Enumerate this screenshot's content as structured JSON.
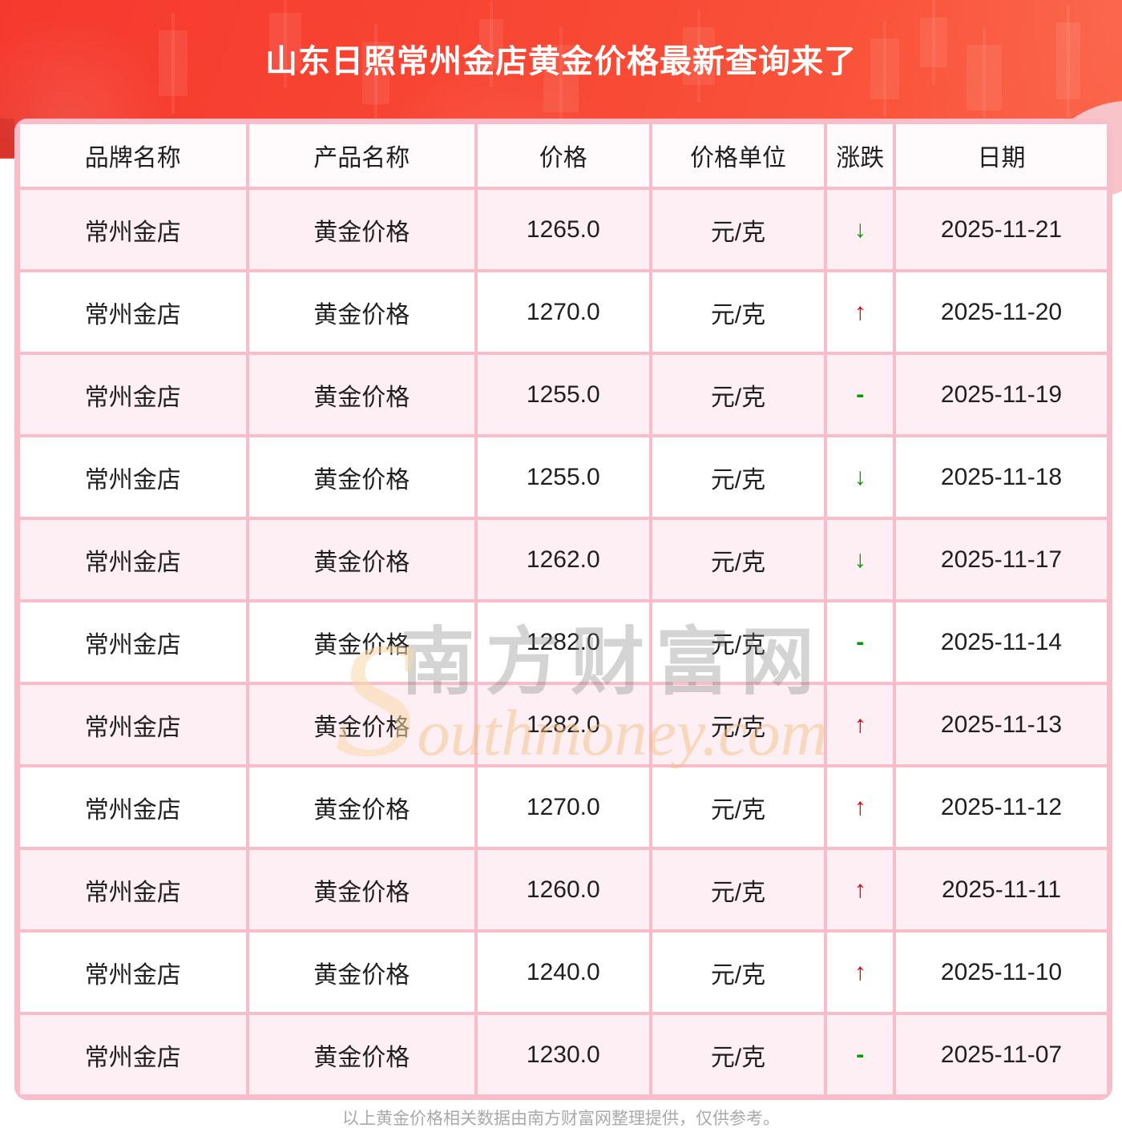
{
  "page": {
    "title": "山东日照常州金店黄金价格最新查询来了",
    "footer_note": "以上黄金价格相关数据由南方财富网整理提供，仅供参考。"
  },
  "watermark": {
    "site_cn": "南方财富网",
    "site_en": "Southmoney.com"
  },
  "colors": {
    "banner_red": "#f6392e",
    "up_arrow_red": "#e60000",
    "down_arrow_green": "#019a01",
    "border_pink": "#f8bdc9",
    "row_pink": "#fdeff3"
  },
  "table": {
    "headers": [
      "品牌名称",
      "产品名称",
      "价格",
      "价格单位",
      "涨跌",
      "日期"
    ],
    "rows": [
      {
        "brand": "常州金店",
        "product": "黄金价格",
        "price": "1265.0",
        "unit": "元/克",
        "change": "↓",
        "dir": "down",
        "date": "2025-11-21"
      },
      {
        "brand": "常州金店",
        "product": "黄金价格",
        "price": "1270.0",
        "unit": "元/克",
        "change": "↑",
        "dir": "up",
        "date": "2025-11-20"
      },
      {
        "brand": "常州金店",
        "product": "黄金价格",
        "price": "1255.0",
        "unit": "元/克",
        "change": "-",
        "dir": "flat",
        "date": "2025-11-19"
      },
      {
        "brand": "常州金店",
        "product": "黄金价格",
        "price": "1255.0",
        "unit": "元/克",
        "change": "↓",
        "dir": "down",
        "date": "2025-11-18"
      },
      {
        "brand": "常州金店",
        "product": "黄金价格",
        "price": "1262.0",
        "unit": "元/克",
        "change": "↓",
        "dir": "down",
        "date": "2025-11-17"
      },
      {
        "brand": "常州金店",
        "product": "黄金价格",
        "price": "1282.0",
        "unit": "元/克",
        "change": "-",
        "dir": "flat",
        "date": "2025-11-14"
      },
      {
        "brand": "常州金店",
        "product": "黄金价格",
        "price": "1282.0",
        "unit": "元/克",
        "change": "↑",
        "dir": "up",
        "date": "2025-11-13"
      },
      {
        "brand": "常州金店",
        "product": "黄金价格",
        "price": "1270.0",
        "unit": "元/克",
        "change": "↑",
        "dir": "up",
        "date": "2025-11-12"
      },
      {
        "brand": "常州金店",
        "product": "黄金价格",
        "price": "1260.0",
        "unit": "元/克",
        "change": "↑",
        "dir": "up",
        "date": "2025-11-11"
      },
      {
        "brand": "常州金店",
        "product": "黄金价格",
        "price": "1240.0",
        "unit": "元/克",
        "change": "↑",
        "dir": "up",
        "date": "2025-11-10"
      },
      {
        "brand": "常州金店",
        "product": "黄金价格",
        "price": "1230.0",
        "unit": "元/克",
        "change": "-",
        "dir": "flat",
        "date": "2025-11-07"
      }
    ]
  }
}
